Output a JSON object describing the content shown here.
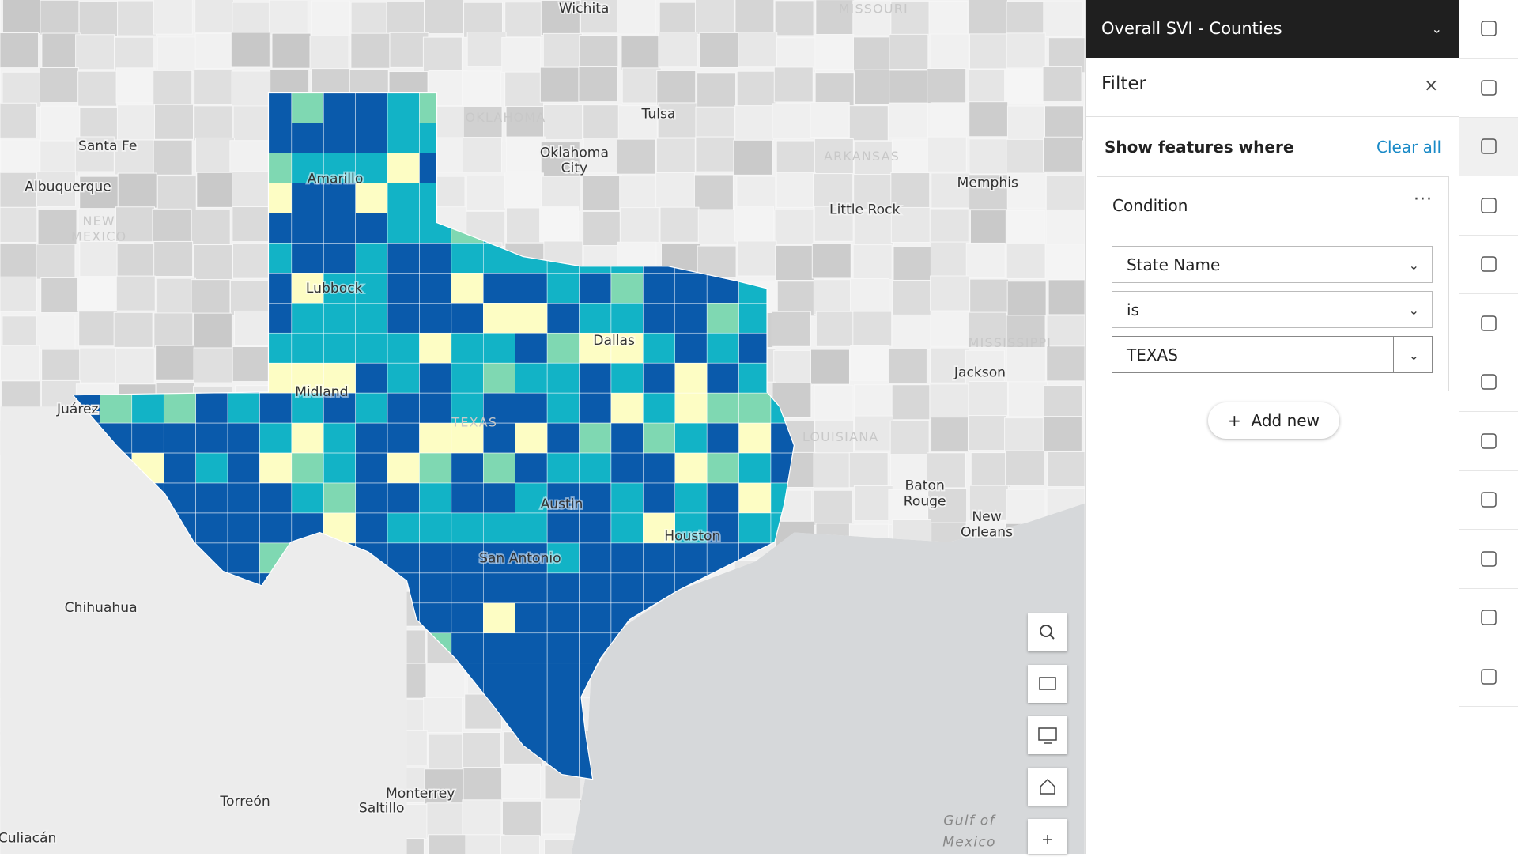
{
  "header": {
    "layer_title": "Overall SVI - Counties"
  },
  "filter": {
    "title": "Filter",
    "show_features_where": "Show features where",
    "clear_all": "Clear all",
    "condition": {
      "title": "Condition",
      "field": "State Name",
      "operator": "is",
      "value": "TEXAS"
    },
    "add_new": "Add new"
  },
  "map": {
    "labels": [
      "Wichita",
      "MISSOURI",
      "OKLAHOMA",
      "Tulsa",
      "Santa Fe",
      "Oklahoma",
      "City",
      "ARKANSAS",
      "Memphis",
      "Amarillo",
      "Albuquerque",
      "NEW",
      "MEXICO",
      "Little Rock",
      "Lubbock",
      "Dallas",
      "MISSISSIPPI",
      "Jackson",
      "Midland",
      "Juárez",
      "TEXAS",
      "LOUISIANA",
      "Baton",
      "Rouge",
      "Austin",
      "New",
      "Orleans",
      "Houston",
      "San Antonio",
      "Chihuahua",
      "Torreón",
      "Monterrey",
      "Saltillo",
      "Gulf of",
      "Mexico",
      "Culiacán"
    ]
  }
}
